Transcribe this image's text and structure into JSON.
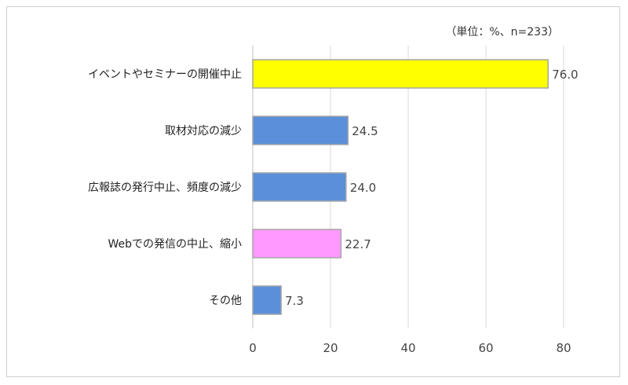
{
  "chart_data": {
    "type": "bar",
    "orientation": "horizontal",
    "unit_note": "（単位：%、n=233）",
    "categories": [
      "イベントやセミナーの開催中止",
      "取材対応の減少",
      "広報誌の発行中止、頻度の減少",
      "Webでの発信の中止、縮小",
      "その他"
    ],
    "values": [
      76.0,
      24.5,
      24.0,
      22.7,
      7.3
    ],
    "value_labels": [
      "76.0",
      "24.5",
      "24.0",
      "22.7",
      "7.3"
    ],
    "bar_colors": [
      "#ffff00",
      "#5b8fd9",
      "#5b8fd9",
      "#ff99ff",
      "#5b8fd9"
    ],
    "xlim": [
      0,
      80
    ],
    "xticks": [
      0,
      20,
      40,
      60,
      80
    ],
    "xtick_labels": [
      "0",
      "20",
      "40",
      "60",
      "80"
    ],
    "grid": true,
    "legend": "none",
    "title": "",
    "xlabel": "",
    "ylabel": ""
  }
}
